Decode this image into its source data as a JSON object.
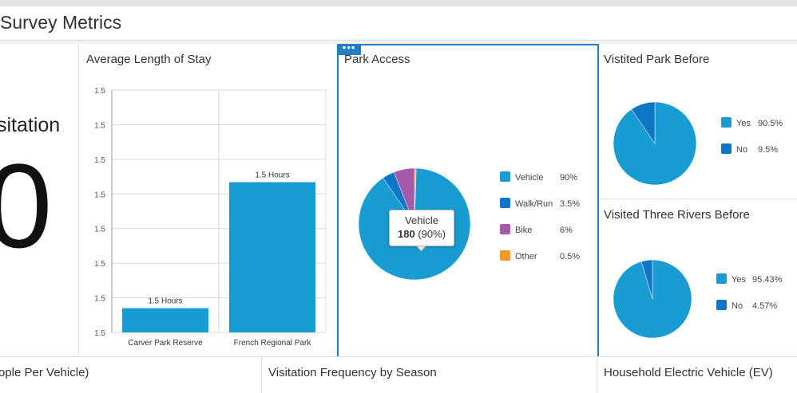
{
  "header": {
    "title": "Survey Metrics"
  },
  "visitation": {
    "label": "sitation",
    "value": "0"
  },
  "stay": {
    "title": "Average Length of Stay",
    "chart_data": {
      "type": "bar",
      "title": "Average Length of Stay",
      "categories": [
        "Carver Park Reserve",
        "French Regional Park"
      ],
      "values": [
        1.5,
        1.5
      ],
      "data_labels": [
        "1.5 Hours",
        "1.5 Hours"
      ],
      "ytick_labels": [
        "1.5",
        "1.5",
        "1.5",
        "1.5",
        "1.5",
        "1.5",
        "1.5",
        "1.5"
      ],
      "xlabel": "",
      "ylabel": "",
      "color": "#199cd1",
      "bar_fraction": [
        0.1,
        0.62
      ]
    }
  },
  "access": {
    "title": "Park Access",
    "dots": "•••",
    "chart_data": {
      "type": "pie",
      "title": "Park Access",
      "slices": [
        {
          "label": "Vehicle",
          "value": 90,
          "display": "90%",
          "color": "#199cd1"
        },
        {
          "label": "Walk/Run",
          "value": 3.5,
          "display": "3.5%",
          "color": "#0d76c7"
        },
        {
          "label": "Bike",
          "value": 6,
          "display": "6%",
          "color": "#a45aa8"
        },
        {
          "label": "Other",
          "value": 0.5,
          "display": "0.5%",
          "color": "#f29a2e"
        }
      ]
    },
    "tooltip": {
      "label": "Vehicle",
      "count": "180",
      "pct": "(90%)"
    }
  },
  "before": {
    "title": "Vistited Park Before",
    "chart_data": {
      "type": "pie",
      "title": "Vistited Park Before",
      "slices": [
        {
          "label": "Yes",
          "value": 90.5,
          "display": "90.5%",
          "color": "#199cd1"
        },
        {
          "label": "No",
          "value": 9.5,
          "display": "9.5%",
          "color": "#0d76c7"
        }
      ]
    }
  },
  "three": {
    "title": "Visited Three Rivers Before",
    "chart_data": {
      "type": "pie",
      "title": "Visited Three Rivers Before",
      "slices": [
        {
          "label": "Yes",
          "value": 95.43,
          "display": "95.43%",
          "color": "#199cd1"
        },
        {
          "label": "No",
          "value": 4.57,
          "display": "4.57%",
          "color": "#0d76c7"
        }
      ]
    }
  },
  "bottom": {
    "people": "ople Per Vehicle)",
    "frequency": "Visitation Frequency by Season",
    "ev": "Household Electric Vehicle (EV)"
  }
}
